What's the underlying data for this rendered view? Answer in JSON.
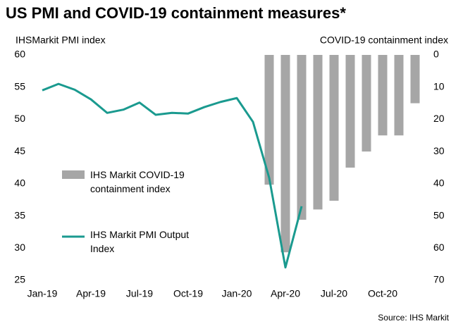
{
  "chart_data": {
    "type": "bar_line",
    "title": "US PMI and COVID-19 containment measures*",
    "y_axis_label": "IHSMarkit PMI index",
    "y2_axis_label": "COVID-19 containment index",
    "source": "Source: IHS Markit",
    "categories": [
      "Jan-19",
      null,
      null,
      "Apr-19",
      null,
      null,
      "Jul-19",
      null,
      null,
      "Oct-19",
      null,
      null,
      "Jan-20",
      null,
      null,
      "Apr-20",
      null,
      null,
      "Jul-20",
      null,
      null,
      "Oct-20",
      null,
      null
    ],
    "series": [
      {
        "name": "IHS Markit COVID-19 containment index",
        "type": "bar",
        "axis": "y2",
        "color": "#a6a6a6",
        "values": [
          null,
          null,
          null,
          null,
          null,
          null,
          null,
          null,
          null,
          null,
          null,
          null,
          null,
          null,
          40.3,
          61.3,
          51.2,
          48,
          45.3,
          35,
          30,
          25,
          25,
          15
        ]
      },
      {
        "name": "IHS Markit PMI Output Index",
        "type": "line",
        "color": "#1a9a8f",
        "values": [
          54.5,
          55.5,
          54.6,
          53.1,
          51.0,
          51.5,
          52.6,
          50.7,
          51.0,
          50.9,
          51.9,
          52.7,
          53.3,
          49.6,
          40.9,
          27.0,
          36.5,
          null,
          null,
          null,
          null,
          null,
          null,
          null
        ]
      }
    ],
    "ylim": [
      25,
      60
    ],
    "yticks": [
      25,
      30,
      35,
      40,
      45,
      50,
      55,
      60
    ],
    "y2lim": [
      0,
      70
    ],
    "y2ticks": [
      0,
      10,
      20,
      30,
      40,
      50,
      60,
      70
    ],
    "y2_inverted": true,
    "grid": false,
    "legend": "left"
  }
}
